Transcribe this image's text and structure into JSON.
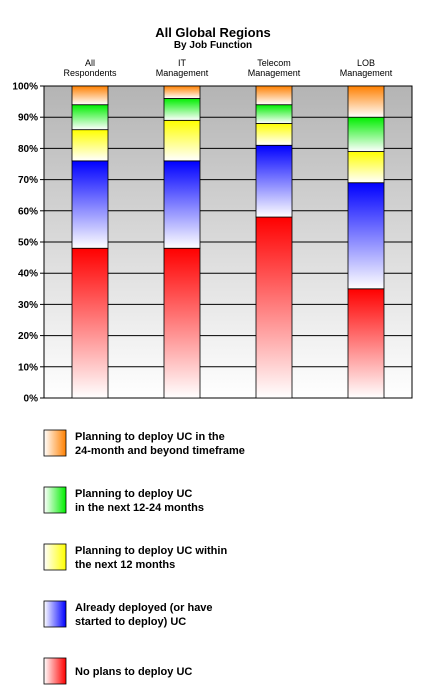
{
  "chart_data": {
    "type": "bar",
    "stacked": true,
    "title": "All Global Regions",
    "subtitle": "By Job Function",
    "categories": [
      [
        "All",
        "Respondents"
      ],
      [
        "IT",
        "Management"
      ],
      [
        "Telecom",
        "Management"
      ],
      [
        "LOB",
        "Management"
      ]
    ],
    "y_ticks": [
      "0%",
      "10%",
      "20%",
      "30%",
      "40%",
      "50%",
      "60%",
      "70%",
      "80%",
      "90%",
      "100%"
    ],
    "ylim": [
      0,
      100
    ],
    "grid": true,
    "legend_position": "bottom",
    "series": [
      {
        "name": [
          "No plans to deploy UC"
        ],
        "values": [
          48,
          48,
          58,
          35
        ],
        "color": "#ff0000"
      },
      {
        "name": [
          "Already deployed (or have",
          "started to deploy) UC"
        ],
        "values": [
          28,
          28,
          23,
          34
        ],
        "color": "#0000ff"
      },
      {
        "name": [
          "Planning to deploy UC within",
          "the next 12 months"
        ],
        "values": [
          10,
          13,
          7,
          10
        ],
        "color": "#ffff00"
      },
      {
        "name": [
          "Planning to deploy UC",
          "in the next 12-24 months"
        ],
        "values": [
          8,
          7,
          6,
          11
        ],
        "color": "#00ee00"
      },
      {
        "name": [
          "Planning to deploy UC in the",
          "24-month and beyond timeframe"
        ],
        "values": [
          6,
          4,
          6,
          10
        ],
        "color": "#ff8000"
      }
    ]
  }
}
